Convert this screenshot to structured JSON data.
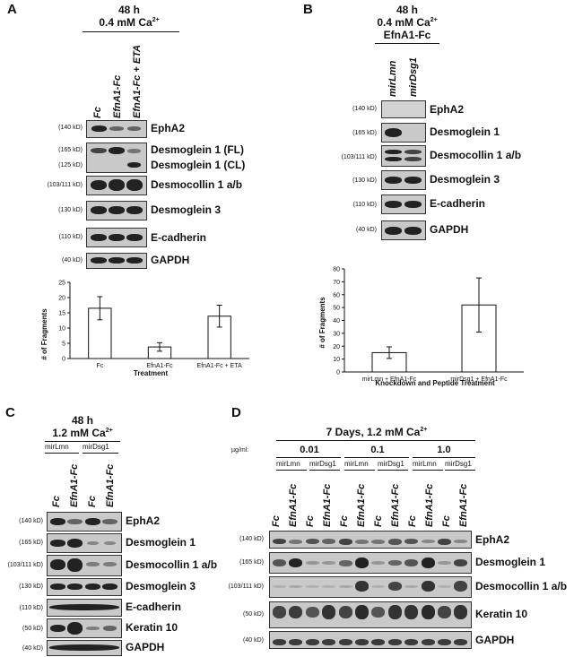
{
  "panelA": {
    "letter": "A",
    "header_line1": "48 h",
    "header_line2": "0.4 mM Ca",
    "ca_sup": "2+",
    "lanes": [
      "Fc",
      "EfnA1-Fc",
      "EfnA1-Fc + ETA"
    ],
    "blots": [
      {
        "mw": "(140 kD)",
        "label": "EphA2"
      },
      {
        "mw": "(165 kD)",
        "label": "Desmoglein 1 (FL)"
      },
      {
        "mw": "(125 kD)",
        "label": "Desmoglein 1 (CL)"
      },
      {
        "mw": "(103/111 kD)",
        "label": "Desmocollin 1 a/b"
      },
      {
        "mw": "(130 kD)",
        "label": "Desmoglein 3"
      },
      {
        "mw": "(110 kD)",
        "label": "E-cadherin"
      },
      {
        "mw": "(40 kD)",
        "label": "GAPDH"
      }
    ]
  },
  "panelB": {
    "letter": "B",
    "header_line1": "48 h",
    "header_line2": "0.4 mM Ca",
    "ca_sup": "2+",
    "header_line3": "EfnA1-Fc",
    "lanes": [
      "mirLmn",
      "mirDsg1"
    ],
    "blots": [
      {
        "mw": "(140 kD)",
        "label": "EphA2"
      },
      {
        "mw": "(165 kD)",
        "label": "Desmoglein 1"
      },
      {
        "mw": "(103/111 kD)",
        "label": "Desmocollin 1 a/b"
      },
      {
        "mw": "(130 kD)",
        "label": "Desmoglein 3"
      },
      {
        "mw": "(110 kD)",
        "label": "E-cadherin"
      },
      {
        "mw": "(40 kD)",
        "label": "GAPDH"
      }
    ]
  },
  "panelC": {
    "letter": "C",
    "header_line1": "48 h",
    "header_line2": "1.2 mM Ca",
    "ca_sup": "2+",
    "groups": [
      "mirLmn",
      "mirDsg1"
    ],
    "lanes": [
      "Fc",
      "EfnA1-Fc",
      "Fc",
      "EfnA1-Fc"
    ],
    "blots": [
      {
        "mw": "(140 kD)",
        "label": "EphA2"
      },
      {
        "mw": "(165 kD)",
        "label": "Desmoglein 1"
      },
      {
        "mw": "(103/111 kD)",
        "label": "Desmocollin 1 a/b"
      },
      {
        "mw": "(130 kD)",
        "label": "Desmoglein 3"
      },
      {
        "mw": "(110 kD)",
        "label": "E-cadherin"
      },
      {
        "mw": "(50 kD)",
        "label": "Keratin 10"
      },
      {
        "mw": "(40 kD)",
        "label": "GAPDH"
      }
    ]
  },
  "panelD": {
    "letter": "D",
    "header": "7 Days, 1.2 mM Ca",
    "ca_sup": "2+",
    "unit_label": "µg/ml:",
    "doses": [
      "0.01",
      "0.1",
      "1.0"
    ],
    "groups": [
      "mirLmn",
      "mirDsg1"
    ],
    "lanes": [
      "Fc",
      "EfnA1-Fc",
      "Fc",
      "EfnA1-Fc"
    ],
    "blots": [
      {
        "mw": "(140 kD)",
        "label": "EphA2"
      },
      {
        "mw": "(165 kD)",
        "label": "Desmoglein 1"
      },
      {
        "mw": "(103/111 kD)",
        "label": "Desmocollin 1 a/b"
      },
      {
        "mw": "(50 kD)",
        "label": "Keratin 10"
      },
      {
        "mw": "(40 kD)",
        "label": "GAPDH"
      }
    ]
  },
  "chart_data": [
    {
      "type": "bar",
      "panel": "A",
      "categories": [
        "Fc",
        "EfnA1-Fc",
        "EfnA1-Fc + ETA"
      ],
      "values": [
        16.5,
        3.8,
        13.9
      ],
      "errors": [
        3.8,
        1.4,
        3.6
      ],
      "xlabel": "Treatment",
      "ylabel": "# of Fragments",
      "ylim": [
        0,
        25
      ],
      "yticks": [
        "0",
        "5",
        "10",
        "15",
        "20",
        "25"
      ]
    },
    {
      "type": "bar",
      "panel": "B",
      "categories": [
        "mirLmn + EfnA1-Fc",
        "mirDsg1 + EfnA1-Fc"
      ],
      "values": [
        15,
        52
      ],
      "errors": [
        4.5,
        21
      ],
      "xlabel": "Knockdown and Peptide Treatment",
      "ylabel": "# of Fragments",
      "ylim": [
        0,
        80
      ],
      "yticks": [
        "0",
        "10",
        "20",
        "30",
        "40",
        "50",
        "60",
        "70",
        "80"
      ]
    }
  ]
}
